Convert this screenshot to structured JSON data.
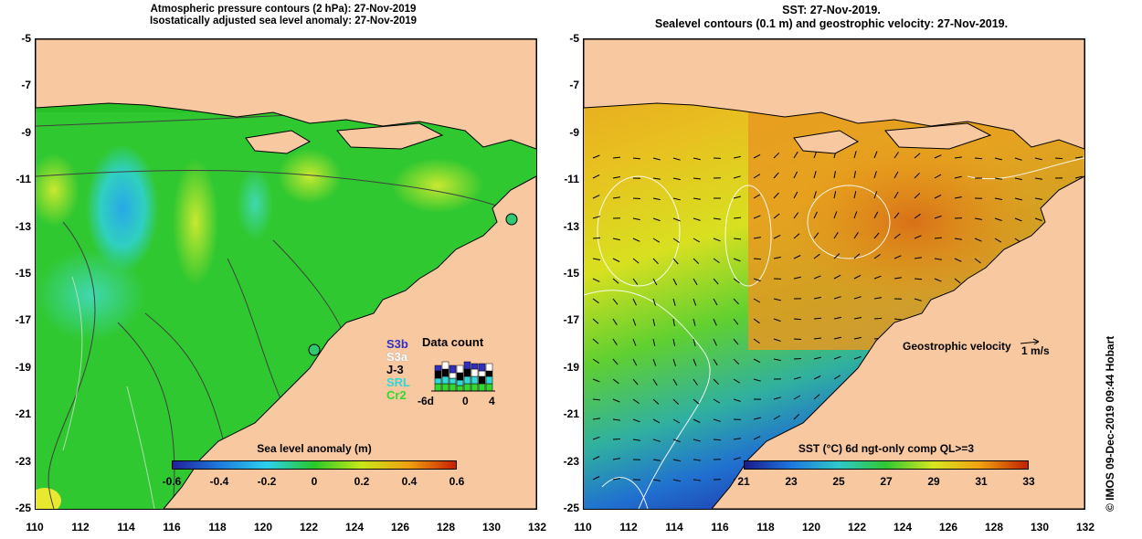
{
  "left_panel": {
    "title_line1": "Atmospheric pressure contours (2 hPa): 27-Nov-2019",
    "title_line2": "Isostatically adjusted sea level anomaly: 27-Nov-2019",
    "colorbar_title": "Sea level anomaly (m)",
    "colorbar_ticks": [
      "-0.6",
      "-0.4",
      "-0.2",
      "0",
      "0.2",
      "0.4",
      "0.6"
    ],
    "colorbar_colors": [
      "#20209a",
      "#1e7bdc",
      "#2ed0ee",
      "#28c828",
      "#c8e818",
      "#f0a010",
      "#c82000"
    ],
    "data_count": {
      "label": "Data count",
      "satellites": [
        {
          "name": "S3b",
          "color": "#3030c0"
        },
        {
          "name": "S3a",
          "color": "#ffffff"
        },
        {
          "name": "J-3",
          "color": "#000000"
        },
        {
          "name": "SRL",
          "color": "#30d8d8"
        },
        {
          "name": "Cr2",
          "color": "#30d830"
        }
      ],
      "x_ticks": [
        "-6d",
        "0",
        "4"
      ]
    }
  },
  "right_panel": {
    "title_line1": "SST: 27-Nov-2019.",
    "title_line2": "Sealevel contours (0.1 m) and geostrophic velocity: 27-Nov-2019.",
    "colorbar_title": "SST (°C) 6d ngt-only comp QL>=3",
    "colorbar_ticks": [
      "21",
      "23",
      "25",
      "27",
      "29",
      "31",
      "33"
    ],
    "colorbar_colors": [
      "#1a1a8a",
      "#1e78e0",
      "#30c8c8",
      "#30c830",
      "#d8e820",
      "#f0a010",
      "#c02000"
    ],
    "velocity_label": "Geostrophic velocity",
    "velocity_scale": "1 m/s"
  },
  "axes": {
    "y_ticks": [
      "-5",
      "-7",
      "-9",
      "-11",
      "-13",
      "-15",
      "-17",
      "-19",
      "-21",
      "-23",
      "-25"
    ],
    "x_ticks": [
      "110",
      "112",
      "114",
      "116",
      "118",
      "120",
      "122",
      "124",
      "126",
      "128",
      "130",
      "132"
    ]
  },
  "credit": "© IMOS 09-Dec-2019 09:44 Hobart",
  "colors": {
    "land": "#f8c8a0",
    "land_edge": "#000000"
  }
}
